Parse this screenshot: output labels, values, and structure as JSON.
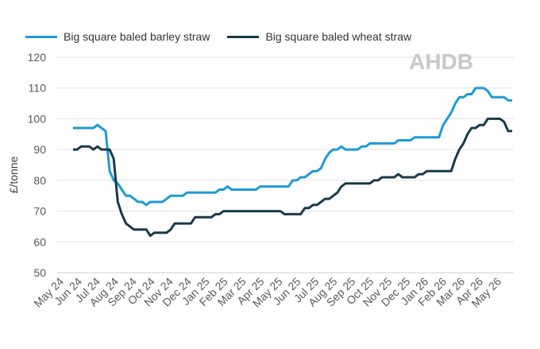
{
  "chart_data": {
    "type": "line",
    "title": "",
    "xlabel": "",
    "ylabel": "£/tonne",
    "ylim": [
      50,
      120
    ],
    "yticks": [
      50,
      60,
      70,
      80,
      90,
      100,
      110,
      120
    ],
    "grid": "horizontal",
    "legend_position": "top-left",
    "x_tick_labels": [
      "May 24",
      "Jun 24",
      "Jul 24",
      "Aug 24",
      "Sep 24",
      "Oct 24",
      "Nov 24",
      "Dec 24",
      "Jan 25",
      "Feb 25",
      "Mar 25",
      "Apr 25",
      "May 25",
      "Jun 25",
      "Jul 25",
      "Aug 25",
      "Sep 25",
      "Oct 25",
      "Nov 25",
      "Dec 25",
      "Jan 26",
      "Feb 26",
      "Mar 26",
      "Apr 26",
      "May 26"
    ],
    "x": [
      "2024-05-05",
      "2024-05-12",
      "2024-05-19",
      "2024-05-26",
      "2024-06-02",
      "2024-06-09",
      "2024-06-16",
      "2024-06-23",
      "2024-06-30",
      "2024-07-07",
      "2024-07-14",
      "2024-07-21",
      "2024-07-28",
      "2024-08-04",
      "2024-08-11",
      "2024-08-18",
      "2024-08-25",
      "2024-09-01",
      "2024-09-08",
      "2024-09-15",
      "2024-09-22",
      "2024-09-29",
      "2024-10-06",
      "2024-10-13",
      "2024-10-20",
      "2024-10-27",
      "2024-11-03",
      "2024-11-10",
      "2024-11-17",
      "2024-11-24",
      "2024-12-01",
      "2024-12-08",
      "2024-12-15",
      "2024-12-22",
      "2024-12-29",
      "2025-01-05",
      "2025-01-12",
      "2025-01-19",
      "2025-01-26",
      "2025-02-02",
      "2025-02-09",
      "2025-02-16",
      "2025-02-23",
      "2025-03-02",
      "2025-03-09",
      "2025-03-16",
      "2025-03-23",
      "2025-03-30",
      "2025-04-06",
      "2025-04-13",
      "2025-04-20",
      "2025-04-27",
      "2025-05-04",
      "2025-05-11",
      "2025-05-18",
      "2025-05-25",
      "2025-06-01",
      "2025-06-08",
      "2025-06-15",
      "2025-06-22",
      "2025-06-29",
      "2025-07-06",
      "2025-07-13",
      "2025-07-20",
      "2025-07-27",
      "2025-08-03",
      "2025-08-10",
      "2025-08-17",
      "2025-08-24",
      "2025-08-31",
      "2025-09-07",
      "2025-09-14",
      "2025-09-21",
      "2025-09-28",
      "2025-10-05",
      "2025-10-12",
      "2025-10-19",
      "2025-10-26",
      "2025-11-02",
      "2025-11-09",
      "2025-11-16",
      "2025-11-23",
      "2025-11-30",
      "2025-12-07",
      "2025-12-14",
      "2025-12-21",
      "2025-12-28",
      "2026-01-04",
      "2026-01-11",
      "2026-01-18",
      "2026-01-25",
      "2026-02-01",
      "2026-02-08",
      "2026-02-15",
      "2026-02-22",
      "2026-03-01",
      "2026-03-08",
      "2026-03-15",
      "2026-03-22",
      "2026-03-29",
      "2026-04-05",
      "2026-04-12",
      "2026-04-19",
      "2026-04-26",
      "2026-05-03",
      "2026-05-10",
      "2026-05-17",
      "2026-05-24",
      "2026-05-31"
    ],
    "series": [
      {
        "name": "Big square baled barley straw",
        "color": "#1e9ad6",
        "values": [
          97,
          97,
          97,
          97,
          97,
          97,
          98,
          97,
          96,
          83,
          80,
          79,
          77,
          75,
          75,
          74,
          73,
          73,
          72,
          73,
          73,
          73,
          73,
          74,
          75,
          75,
          75,
          75,
          76,
          76,
          76,
          76,
          76,
          76,
          76,
          76,
          77,
          77,
          78,
          77,
          77,
          77,
          77,
          77,
          77,
          77,
          78,
          78,
          78,
          78,
          78,
          78,
          78,
          78,
          80,
          80,
          81,
          81,
          82,
          83,
          83,
          84,
          87,
          89,
          90,
          90,
          91,
          90,
          90,
          90,
          90,
          91,
          91,
          92,
          92,
          92,
          92,
          92,
          92,
          92,
          93,
          93,
          93,
          93,
          94,
          94,
          94,
          94,
          94,
          94,
          94,
          98,
          100,
          102,
          105,
          107,
          107,
          108,
          108,
          110,
          110,
          110,
          109,
          107,
          107,
          107,
          107,
          106,
          106
        ]
      },
      {
        "name": "Big square baled wheat straw",
        "color": "#183a4a",
        "values": [
          90,
          90,
          91,
          91,
          91,
          90,
          91,
          90,
          90,
          90,
          87,
          73,
          69,
          66,
          65,
          64,
          64,
          64,
          64,
          62,
          63,
          63,
          63,
          63,
          64,
          66,
          66,
          66,
          66,
          66,
          68,
          68,
          68,
          68,
          68,
          69,
          69,
          70,
          70,
          70,
          70,
          70,
          70,
          70,
          70,
          70,
          70,
          70,
          70,
          70,
          70,
          70,
          69,
          69,
          69,
          69,
          69,
          71,
          71,
          72,
          72,
          73,
          74,
          74,
          75,
          76,
          78,
          79,
          79,
          79,
          79,
          79,
          79,
          79,
          80,
          80,
          81,
          81,
          81,
          81,
          82,
          81,
          81,
          81,
          81,
          82,
          82,
          83,
          83,
          83,
          83,
          83,
          83,
          83,
          87,
          90,
          92,
          95,
          97,
          97,
          98,
          98,
          100,
          100,
          100,
          100,
          99,
          96,
          96
        ]
      }
    ]
  },
  "legend": {
    "barley": "Big square baled barley straw",
    "wheat": "Big square baled wheat straw"
  },
  "logo": {
    "text": "AHDB"
  }
}
